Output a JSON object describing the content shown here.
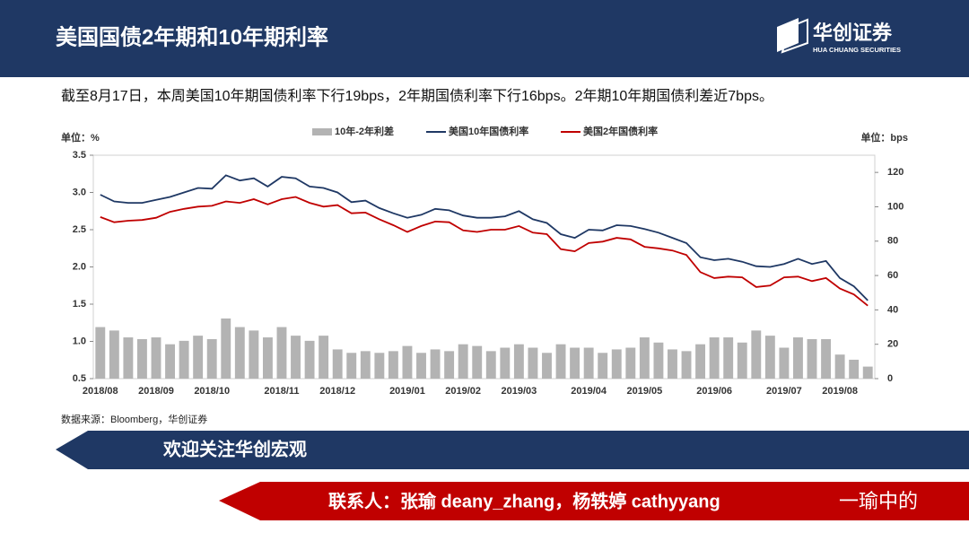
{
  "header": {
    "title": "美国国债2年期和10年期利率",
    "logo": "华创证券",
    "logo_sub": "HUA CHUANG SECURITIES"
  },
  "summary": "截至8月17日，本周美国10年期国债利率下行19bps，2年期国债利率下行16bps。2年期10年期国债利差近7bps。",
  "chart_data": {
    "type": "line",
    "ylabel": "单位：%",
    "y2label": "单位：bps",
    "categories": [
      "2018/08",
      null,
      null,
      null,
      "2018/09",
      null,
      null,
      null,
      "2018/10",
      null,
      null,
      null,
      null,
      "2018/11",
      null,
      null,
      null,
      "2018/12",
      null,
      null,
      null,
      null,
      "2019/01",
      null,
      null,
      null,
      "2019/02",
      null,
      null,
      null,
      "2019/03",
      null,
      null,
      null,
      null,
      "2019/04",
      null,
      null,
      null,
      "2019/05",
      null,
      null,
      null,
      null,
      "2019/06",
      null,
      null,
      null,
      null,
      "2019/07",
      null,
      null,
      null,
      "2019/08",
      null,
      null
    ],
    "series": [
      {
        "name": "10年-2年利差",
        "type": "bar",
        "axis": "y2",
        "color": "#b3b3b3",
        "values": [
          30,
          28,
          24,
          23,
          24,
          20,
          22,
          25,
          23,
          35,
          30,
          28,
          24,
          30,
          25,
          22,
          25,
          17,
          15,
          16,
          15,
          16,
          19,
          15,
          17,
          16,
          20,
          19,
          16,
          18,
          20,
          18,
          15,
          20,
          18,
          18,
          15,
          17,
          18,
          24,
          21,
          17,
          16,
          20,
          24,
          24,
          21,
          28,
          25,
          18,
          24,
          23,
          23,
          14,
          11,
          7
        ]
      },
      {
        "name": "美国10年国债利率",
        "type": "line",
        "color": "#1f3864",
        "values": [
          2.97,
          2.88,
          2.86,
          2.86,
          2.9,
          2.94,
          3.0,
          3.06,
          3.05,
          3.23,
          3.16,
          3.19,
          3.08,
          3.21,
          3.19,
          3.08,
          3.06,
          3.0,
          2.87,
          2.89,
          2.79,
          2.72,
          2.66,
          2.7,
          2.78,
          2.76,
          2.69,
          2.66,
          2.66,
          2.68,
          2.75,
          2.64,
          2.59,
          2.44,
          2.39,
          2.5,
          2.49,
          2.56,
          2.55,
          2.51,
          2.46,
          2.39,
          2.32,
          2.13,
          2.09,
          2.11,
          2.07,
          2.01,
          2.0,
          2.04,
          2.11,
          2.04,
          2.08,
          1.85,
          1.74,
          1.55
        ]
      },
      {
        "name": "美国2年国债利率",
        "type": "line",
        "color": "#c00000",
        "values": [
          2.67,
          2.6,
          2.62,
          2.63,
          2.66,
          2.74,
          2.78,
          2.81,
          2.82,
          2.88,
          2.86,
          2.91,
          2.84,
          2.91,
          2.94,
          2.86,
          2.81,
          2.83,
          2.72,
          2.73,
          2.64,
          2.56,
          2.47,
          2.55,
          2.61,
          2.6,
          2.49,
          2.47,
          2.5,
          2.5,
          2.55,
          2.46,
          2.44,
          2.24,
          2.21,
          2.32,
          2.34,
          2.39,
          2.37,
          2.27,
          2.25,
          2.22,
          2.16,
          1.93,
          1.85,
          1.87,
          1.86,
          1.73,
          1.75,
          1.86,
          1.87,
          1.81,
          1.85,
          1.71,
          1.63,
          1.48
        ]
      }
    ],
    "ylim": [
      0.5,
      3.5
    ],
    "yticks": [
      0.5,
      {
        "value": 1,
        "label": "1.0"
      },
      1.5,
      {
        "value": 2,
        "label": "2.0"
      },
      2.5,
      {
        "value": 3,
        "label": "3.0"
      },
      3.5
    ],
    "y2lim": [
      0,
      130
    ],
    "y2ticks": [
      0,
      20,
      40,
      60,
      80,
      100,
      120
    ],
    "source": "数据来源：Bloomberg，华创证券"
  },
  "footer": {
    "banner": "欢迎关注华创宏观",
    "contact": "联系人：张瑜 deany_zhang，杨轶婷 cathyyang",
    "watermark": "一瑜中的"
  }
}
